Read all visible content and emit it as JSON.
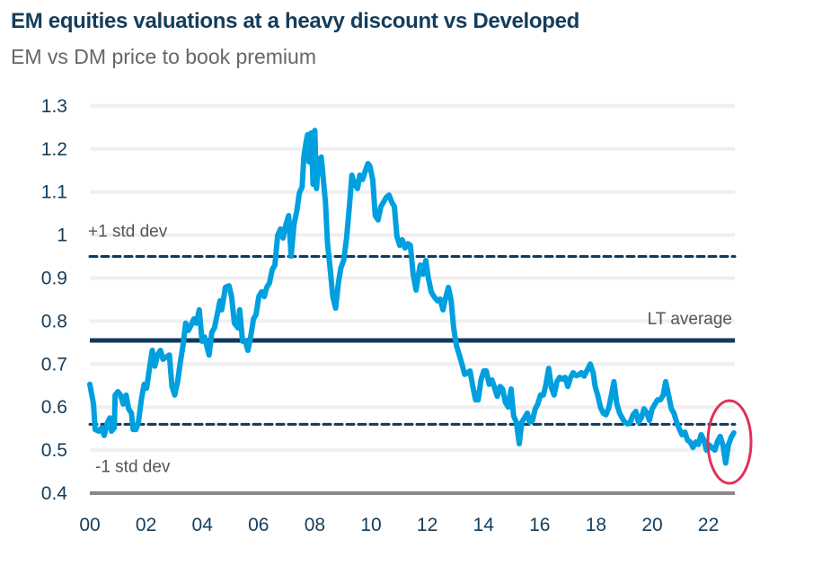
{
  "chart_data": {
    "type": "line",
    "title": "EM equities valuations at a heavy discount vs Developed",
    "subtitle": "EM vs DM price to book premium",
    "xlabel": "",
    "ylabel": "",
    "ylim": [
      0.4,
      1.3
    ],
    "xlim": [
      2000,
      2023
    ],
    "yticks": [
      "0.4",
      "0.5",
      "0.6",
      "0.7",
      "0.8",
      "0.9",
      "1",
      "1.1",
      "1.2",
      "1.3"
    ],
    "xticks": [
      "00",
      "02",
      "04",
      "06",
      "08",
      "10",
      "12",
      "14",
      "16",
      "18",
      "20",
      "22"
    ],
    "grid": true,
    "colors": {
      "series": "#009fdf",
      "reference": "#0f3b5f",
      "highlight": "#e0305a",
      "axis": "#888888"
    },
    "reference_lines": [
      {
        "label": "+1 std dev",
        "value": 0.95,
        "style": "dashed"
      },
      {
        "label": "LT average",
        "value": 0.755,
        "style": "solid"
      },
      {
        "label": "-1 std dev",
        "value": 0.56,
        "style": "dashed"
      }
    ],
    "highlight": {
      "shape": "ellipse",
      "around": "latest values (2022)"
    },
    "series": [
      {
        "points": [
          [
            2000.0,
            0.653
          ],
          [
            2000.13,
            0.607
          ],
          [
            2000.19,
            0.548
          ],
          [
            2000.32,
            0.544
          ],
          [
            2000.42,
            0.552
          ],
          [
            2000.51,
            0.534
          ],
          [
            2000.61,
            0.561
          ],
          [
            2000.71,
            0.575
          ],
          [
            2000.77,
            0.544
          ],
          [
            2000.87,
            0.552
          ],
          [
            2000.9,
            0.628
          ],
          [
            2001.0,
            0.636
          ],
          [
            2001.09,
            0.628
          ],
          [
            2001.19,
            0.607
          ],
          [
            2001.29,
            0.628
          ],
          [
            2001.38,
            0.596
          ],
          [
            2001.48,
            0.586
          ],
          [
            2001.54,
            0.548
          ],
          [
            2001.64,
            0.548
          ],
          [
            2001.73,
            0.565
          ],
          [
            2001.83,
            0.617
          ],
          [
            2001.93,
            0.653
          ],
          [
            2002.02,
            0.644
          ],
          [
            2002.12,
            0.69
          ],
          [
            2002.22,
            0.732
          ],
          [
            2002.31,
            0.695
          ],
          [
            2002.41,
            0.721
          ],
          [
            2002.51,
            0.732
          ],
          [
            2002.6,
            0.711
          ],
          [
            2002.73,
            0.717
          ],
          [
            2002.83,
            0.721
          ],
          [
            2002.92,
            0.648
          ],
          [
            2003.02,
            0.628
          ],
          [
            2003.12,
            0.659
          ],
          [
            2003.21,
            0.701
          ],
          [
            2003.31,
            0.742
          ],
          [
            2003.41,
            0.795
          ],
          [
            2003.5,
            0.778
          ],
          [
            2003.6,
            0.79
          ],
          [
            2003.7,
            0.805
          ],
          [
            2003.79,
            0.795
          ],
          [
            2003.89,
            0.826
          ],
          [
            2003.99,
            0.753
          ],
          [
            2004.08,
            0.763
          ],
          [
            2004.24,
            0.721
          ],
          [
            2004.34,
            0.774
          ],
          [
            2004.43,
            0.784
          ],
          [
            2004.53,
            0.815
          ],
          [
            2004.63,
            0.847
          ],
          [
            2004.69,
            0.826
          ],
          [
            2004.82,
            0.878
          ],
          [
            2004.95,
            0.882
          ],
          [
            2005.04,
            0.857
          ],
          [
            2005.14,
            0.795
          ],
          [
            2005.27,
            0.784
          ],
          [
            2005.33,
            0.826
          ],
          [
            2005.43,
            0.753
          ],
          [
            2005.53,
            0.753
          ],
          [
            2005.62,
            0.732
          ],
          [
            2005.72,
            0.763
          ],
          [
            2005.82,
            0.805
          ],
          [
            2005.91,
            0.815
          ],
          [
            2006.01,
            0.857
          ],
          [
            2006.11,
            0.868
          ],
          [
            2006.2,
            0.857
          ],
          [
            2006.29,
            0.878
          ],
          [
            2006.39,
            0.889
          ],
          [
            2006.49,
            0.92
          ],
          [
            2006.58,
            0.93
          ],
          [
            2006.68,
            0.999
          ],
          [
            2006.78,
            1.014
          ],
          [
            2006.87,
            0.993
          ],
          [
            2006.97,
            1.024
          ],
          [
            2007.07,
            1.045
          ],
          [
            2007.16,
            0.951
          ],
          [
            2007.26,
            1.024
          ],
          [
            2007.36,
            1.056
          ],
          [
            2007.45,
            1.097
          ],
          [
            2007.55,
            1.112
          ],
          [
            2007.61,
            1.181
          ],
          [
            2007.68,
            1.212
          ],
          [
            2007.74,
            1.233
          ],
          [
            2007.8,
            1.17
          ],
          [
            2007.87,
            1.237
          ],
          [
            2007.94,
            1.118
          ],
          [
            2008.0,
            1.243
          ],
          [
            2008.06,
            1.108
          ],
          [
            2008.13,
            1.17
          ],
          [
            2008.23,
            1.181
          ],
          [
            2008.29,
            1.139
          ],
          [
            2008.38,
            1.076
          ],
          [
            2008.45,
            0.982
          ],
          [
            2008.55,
            0.92
          ],
          [
            2008.64,
            0.857
          ],
          [
            2008.74,
            0.83
          ],
          [
            2008.84,
            0.889
          ],
          [
            2008.93,
            0.924
          ],
          [
            2009.03,
            0.941
          ],
          [
            2009.13,
            0.993
          ],
          [
            2009.23,
            1.066
          ],
          [
            2009.32,
            1.139
          ],
          [
            2009.42,
            1.118
          ],
          [
            2009.52,
            1.108
          ],
          [
            2009.6,
            1.139
          ],
          [
            2009.7,
            1.129
          ],
          [
            2009.8,
            1.149
          ],
          [
            2009.89,
            1.166
          ],
          [
            2009.96,
            1.16
          ],
          [
            2010.06,
            1.129
          ],
          [
            2010.15,
            1.045
          ],
          [
            2010.25,
            1.035
          ],
          [
            2010.35,
            1.066
          ],
          [
            2010.44,
            1.076
          ],
          [
            2010.54,
            1.087
          ],
          [
            2010.64,
            1.093
          ],
          [
            2010.74,
            1.076
          ],
          [
            2010.83,
            1.066
          ],
          [
            2010.92,
            0.997
          ],
          [
            2011.02,
            0.976
          ],
          [
            2011.11,
            0.989
          ],
          [
            2011.21,
            0.97
          ],
          [
            2011.31,
            0.98
          ],
          [
            2011.4,
            0.976
          ],
          [
            2011.5,
            0.909
          ],
          [
            2011.6,
            0.872
          ],
          [
            2011.69,
            0.909
          ],
          [
            2011.75,
            0.93
          ],
          [
            2011.85,
            0.909
          ],
          [
            2011.95,
            0.941
          ],
          [
            2012.04,
            0.899
          ],
          [
            2012.14,
            0.868
          ],
          [
            2012.24,
            0.857
          ],
          [
            2012.36,
            0.847
          ],
          [
            2012.46,
            0.851
          ],
          [
            2012.56,
            0.826
          ],
          [
            2012.65,
            0.853
          ],
          [
            2012.75,
            0.878
          ],
          [
            2012.85,
            0.847
          ],
          [
            2012.94,
            0.784
          ],
          [
            2013.04,
            0.742
          ],
          [
            2013.14,
            0.721
          ],
          [
            2013.23,
            0.701
          ],
          [
            2013.33,
            0.676
          ],
          [
            2013.43,
            0.68
          ],
          [
            2013.52,
            0.684
          ],
          [
            2013.62,
            0.648
          ],
          [
            2013.72,
            0.617
          ],
          [
            2013.81,
            0.617
          ],
          [
            2013.91,
            0.663
          ],
          [
            2014.01,
            0.684
          ],
          [
            2014.1,
            0.684
          ],
          [
            2014.2,
            0.653
          ],
          [
            2014.3,
            0.663
          ],
          [
            2014.39,
            0.646
          ],
          [
            2014.49,
            0.625
          ],
          [
            2014.59,
            0.648
          ],
          [
            2014.68,
            0.642
          ],
          [
            2014.78,
            0.611
          ],
          [
            2014.88,
            0.6
          ],
          [
            2014.98,
            0.642
          ],
          [
            2015.07,
            0.58
          ],
          [
            2015.17,
            0.565
          ],
          [
            2015.27,
            0.515
          ],
          [
            2015.36,
            0.565
          ],
          [
            2015.46,
            0.575
          ],
          [
            2015.56,
            0.586
          ],
          [
            2015.64,
            0.565
          ],
          [
            2015.74,
            0.569
          ],
          [
            2015.84,
            0.596
          ],
          [
            2015.93,
            0.607
          ],
          [
            2016.03,
            0.628
          ],
          [
            2016.13,
            0.628
          ],
          [
            2016.22,
            0.653
          ],
          [
            2016.32,
            0.69
          ],
          [
            2016.42,
            0.644
          ],
          [
            2016.51,
            0.628
          ],
          [
            2016.61,
            0.659
          ],
          [
            2016.71,
            0.669
          ],
          [
            2016.8,
            0.665
          ],
          [
            2016.9,
            0.669
          ],
          [
            2017.0,
            0.648
          ],
          [
            2017.1,
            0.669
          ],
          [
            2017.19,
            0.68
          ],
          [
            2017.29,
            0.673
          ],
          [
            2017.39,
            0.675
          ],
          [
            2017.48,
            0.68
          ],
          [
            2017.58,
            0.672
          ],
          [
            2017.68,
            0.685
          ],
          [
            2017.8,
            0.7
          ],
          [
            2017.9,
            0.68
          ],
          [
            2017.97,
            0.648
          ],
          [
            2018.06,
            0.628
          ],
          [
            2018.16,
            0.6
          ],
          [
            2018.26,
            0.586
          ],
          [
            2018.35,
            0.582
          ],
          [
            2018.45,
            0.597
          ],
          [
            2018.55,
            0.628
          ],
          [
            2018.64,
            0.659
          ],
          [
            2018.74,
            0.607
          ],
          [
            2018.84,
            0.586
          ],
          [
            2018.93,
            0.575
          ],
          [
            2019.03,
            0.565
          ],
          [
            2019.13,
            0.561
          ],
          [
            2019.22,
            0.565
          ],
          [
            2019.32,
            0.582
          ],
          [
            2019.42,
            0.59
          ],
          [
            2019.51,
            0.565
          ],
          [
            2019.61,
            0.575
          ],
          [
            2019.71,
            0.596
          ],
          [
            2019.81,
            0.586
          ],
          [
            2019.9,
            0.569
          ],
          [
            2020.0,
            0.596
          ],
          [
            2020.1,
            0.607
          ],
          [
            2020.19,
            0.617
          ],
          [
            2020.29,
            0.617
          ],
          [
            2020.39,
            0.628
          ],
          [
            2020.48,
            0.659
          ],
          [
            2020.58,
            0.628
          ],
          [
            2020.68,
            0.596
          ],
          [
            2020.77,
            0.586
          ],
          [
            2020.87,
            0.565
          ],
          [
            2020.97,
            0.548
          ],
          [
            2021.06,
            0.536
          ],
          [
            2021.16,
            0.542
          ],
          [
            2021.26,
            0.523
          ],
          [
            2021.35,
            0.519
          ],
          [
            2021.45,
            0.506
          ],
          [
            2021.55,
            0.519
          ],
          [
            2021.64,
            0.513
          ],
          [
            2021.74,
            0.536
          ],
          [
            2021.84,
            0.523
          ],
          [
            2021.93,
            0.5
          ],
          [
            2022.03,
            0.512
          ],
          [
            2022.13,
            0.505
          ],
          [
            2022.23,
            0.5
          ],
          [
            2022.32,
            0.52
          ],
          [
            2022.42,
            0.532
          ],
          [
            2022.52,
            0.51
          ],
          [
            2022.61,
            0.47
          ],
          [
            2022.71,
            0.512
          ],
          [
            2022.81,
            0.53
          ],
          [
            2022.9,
            0.54
          ]
        ]
      }
    ]
  }
}
